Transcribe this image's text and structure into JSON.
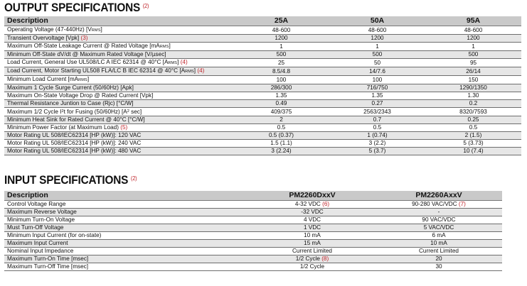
{
  "output": {
    "title": "OUTPUT SPECIFICATIONS",
    "note": "(2)",
    "headers": [
      "Description",
      "25A",
      "50A",
      "95A"
    ],
    "rows": [
      {
        "label": "Operating Voltage (47-440Hz) [V",
        "sub": "RMS",
        "tail": "]",
        "ref": "",
        "values": [
          "48-600",
          "48-600",
          "48-600"
        ]
      },
      {
        "label": "Transient Overvoltage [Vpk]",
        "sub": "",
        "tail": "",
        "ref": "(3)",
        "values": [
          "1200",
          "1200",
          "1200"
        ]
      },
      {
        "label": "Maximum Off-State Leakage Current @ Rated Voltage [mA",
        "sub": "RMS",
        "tail": "]",
        "ref": "",
        "values": [
          "1",
          "1",
          "1"
        ]
      },
      {
        "label": "Minimum Off-State dV/dt @ Maximum Rated Voltage [V/µsec]",
        "sub": "",
        "tail": "",
        "ref": "",
        "values": [
          "500",
          "500",
          "500"
        ]
      },
      {
        "label": "Load Current, General Use  UL508/LC A  IEC 62314 @ 40°C [A",
        "sub": "RMS",
        "tail": "]",
        "ref": "(4)",
        "values": [
          "25",
          "50",
          "95"
        ]
      },
      {
        "label": "Load Current, Motor Starting  UL508 FLA/LC B IEC 62314 @ 40°C [A",
        "sub": "RMS",
        "tail": "]",
        "ref": "(4)",
        "values": [
          "8.5/4.8",
          "14/7.6",
          "26/14"
        ]
      },
      {
        "label": "Minimum Load Current [mA",
        "sub": "RMS",
        "tail": "]",
        "ref": "",
        "values": [
          "100",
          "100",
          "150"
        ]
      },
      {
        "label": "Maximum 1 Cycle Surge Current (50/60Hz) [Apk]",
        "sub": "",
        "tail": "",
        "ref": "",
        "values": [
          "286/300",
          "716/750",
          "1290/1350"
        ]
      },
      {
        "label": "Maximum On-State Voltage Drop @ Rated Current [Vpk]",
        "sub": "",
        "tail": "",
        "ref": "",
        "values": [
          "1.35",
          "1.35",
          "1.30"
        ]
      },
      {
        "label": "Thermal Resistance Juntion to Case (Rjc) [°C/W]",
        "sub": "",
        "tail": "",
        "ref": "",
        "values": [
          "0.49",
          "0.27",
          "0.2"
        ]
      },
      {
        "label": "Maximum 1/2 Cycle I",
        "sup": "2",
        "label2": "t for Fusing (50/60Hz) [A",
        "sup2": "2",
        "tail": " sec]",
        "ref": "",
        "values": [
          "409/375",
          "2563/2343",
          "8320/7593"
        ]
      },
      {
        "label": "Minimum Heat Sink for Rated Current @ 40°C [°C/W]",
        "sub": "",
        "tail": "",
        "ref": "",
        "values": [
          "2",
          "0.7",
          "0.25"
        ]
      },
      {
        "label": "Minimum Power Factor (at Maximum Load)",
        "sub": "",
        "tail": "",
        "ref": "(5)",
        "values": [
          "0.5",
          "0.5",
          "0.5"
        ]
      },
      {
        "label": "Motor Rating UL 508/IEC62314 [HP (kW)]: 120 VAC",
        "sub": "",
        "tail": "",
        "ref": "",
        "values": [
          "0.5 (0.37)",
          "1 (0.74)",
          "2 (1.5)"
        ]
      },
      {
        "label": "Motor Rating UL 508/IEC62314 [HP (kW)]: 240 VAC",
        "sub": "",
        "tail": "",
        "ref": "",
        "values": [
          "1.5 (1.1)",
          "3 (2.2)",
          "5 (3.73)"
        ]
      },
      {
        "label": "Motor Rating UL 508/IEC62314 [HP (kW)]: 480 VAC",
        "sub": "",
        "tail": "",
        "ref": "",
        "values": [
          "3 (2.24)",
          "5 (3.7)",
          "10 (7.4)"
        ]
      }
    ]
  },
  "input": {
    "title": "INPUT SPECIFICATIONS",
    "note": "(2)",
    "headers": [
      "Description",
      "PM2260DxxV",
      "PM2260AxxV"
    ],
    "rows": [
      {
        "label": "Control Voltage Range",
        "values": [
          "4-32 VDC",
          "90-280 VAC/VDC"
        ],
        "refs": [
          "(6)",
          "(7)"
        ]
      },
      {
        "label": "Maximum Reverse Voltage",
        "values": [
          "-32 VDC",
          "-"
        ],
        "refs": [
          "",
          ""
        ]
      },
      {
        "label": "Minimum Turn-On Voltage",
        "values": [
          "4 VDC",
          "90 VAC/VDC"
        ],
        "refs": [
          "",
          ""
        ]
      },
      {
        "label": "Must Turn-Off Voltage",
        "values": [
          "1 VDC",
          "5 VAC/VDC"
        ],
        "refs": [
          "",
          ""
        ]
      },
      {
        "label": "Minimum Input Current (for on-state)",
        "values": [
          "10 mA",
          "6 mA"
        ],
        "refs": [
          "",
          ""
        ]
      },
      {
        "label": "Maximum Input Current",
        "values": [
          "15 mA",
          "10 mA"
        ],
        "refs": [
          "",
          ""
        ]
      },
      {
        "label": "Nominal Input Impedance",
        "values": [
          "Current Limited",
          "Current Limited"
        ],
        "refs": [
          "",
          ""
        ]
      },
      {
        "label": "Maximum Turn-On Time [msec]",
        "values": [
          "1/2 Cycle",
          "20"
        ],
        "refs": [
          "(8)",
          ""
        ]
      },
      {
        "label": "Maximum Turn-Off Time [msec]",
        "values": [
          "1/2 Cycle",
          "30"
        ],
        "refs": [
          "",
          ""
        ]
      }
    ]
  }
}
